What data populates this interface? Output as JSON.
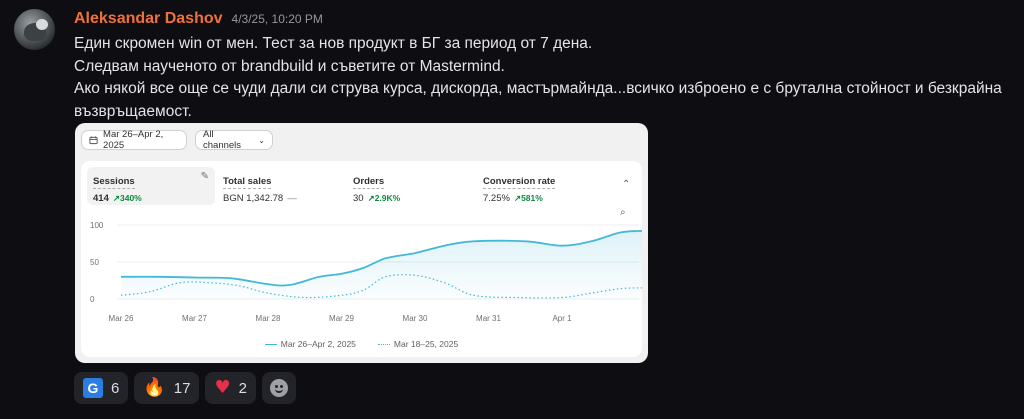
{
  "message": {
    "author": "Aleksandar Dashov",
    "timestamp": "4/3/25, 10:20 PM",
    "lines": [
      "Един скромен win от мен. Тест за нов продукт в БГ за период от 7 дена.",
      "Следвам наученото от brandbuild и съветите от Mastermind.",
      "Ако някой все още се чуди дали си струва курса, дискорда, мастърмайнда...всичко изброено е с брутална стойност и безкрайна",
      "възвръщаемост."
    ]
  },
  "analytics": {
    "date_range": "Mar 26–Apr 2, 2025",
    "channel_filter": "All channels",
    "metrics": [
      {
        "label": "Sessions",
        "value": "414",
        "delta": "340%"
      },
      {
        "label": "Total sales",
        "value": "BGN 1,342.78",
        "delta": "—"
      },
      {
        "label": "Orders",
        "value": "30",
        "delta": "2.9K%"
      },
      {
        "label": "Conversion rate",
        "value": "7.25%",
        "delta": "581%"
      }
    ],
    "legend": {
      "current": "Mar 26–Apr 2, 2025",
      "previous": "Mar 18–25, 2025"
    }
  },
  "chart_data": {
    "type": "line",
    "x": [
      "Mar 26",
      "Mar 27",
      "Mar 28",
      "Mar 29",
      "Mar 30",
      "Mar 31",
      "Apr 1"
    ],
    "yticks": [
      "100",
      "50",
      "0"
    ],
    "ylim": [
      0,
      100
    ],
    "series": [
      {
        "name": "Mar 26–Apr 2, 2025",
        "color": "#43b8d9",
        "style": "solid",
        "points": [
          [
            0,
            30
          ],
          [
            0.5,
            30
          ],
          [
            1,
            29
          ],
          [
            1.5,
            28
          ],
          [
            2,
            20
          ],
          [
            2.3,
            19
          ],
          [
            2.7,
            30
          ],
          [
            3,
            34
          ],
          [
            3.3,
            42
          ],
          [
            3.6,
            55
          ],
          [
            4,
            62
          ],
          [
            4.4,
            72
          ],
          [
            4.8,
            78
          ],
          [
            5.5,
            78
          ],
          [
            6,
            72
          ],
          [
            6.4,
            78
          ],
          [
            6.8,
            90
          ],
          [
            7.1,
            92
          ]
        ]
      },
      {
        "name": "Mar 18–25, 2025",
        "color": "#43b8d9",
        "style": "dotted",
        "points": [
          [
            0,
            5
          ],
          [
            0.4,
            10
          ],
          [
            0.8,
            22
          ],
          [
            1.2,
            22
          ],
          [
            1.6,
            18
          ],
          [
            2,
            8
          ],
          [
            2.5,
            2
          ],
          [
            3,
            5
          ],
          [
            3.3,
            12
          ],
          [
            3.6,
            30
          ],
          [
            4,
            32
          ],
          [
            4.4,
            22
          ],
          [
            4.8,
            5
          ],
          [
            5.4,
            2
          ],
          [
            6,
            2
          ],
          [
            6.4,
            8
          ],
          [
            6.8,
            14
          ],
          [
            7.1,
            15
          ]
        ]
      }
    ]
  },
  "reactions": [
    {
      "emoji": "G",
      "count": "6"
    },
    {
      "emoji": "🔥",
      "count": "17"
    },
    {
      "emoji": "♥",
      "count": "2"
    }
  ]
}
